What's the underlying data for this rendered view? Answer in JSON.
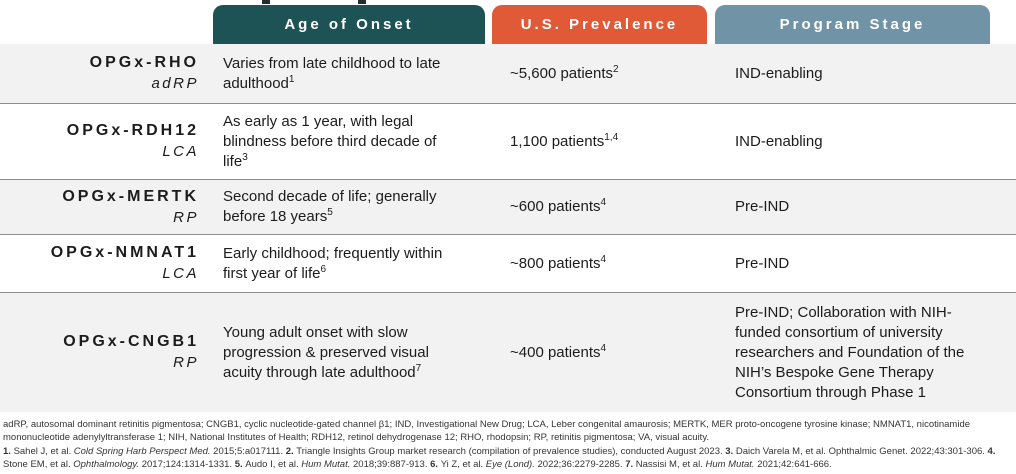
{
  "header": {
    "columns": [
      {
        "label": "Age of Onset",
        "color": "#1d5355"
      },
      {
        "label": "U.S. Prevalence",
        "color": "#e05a38"
      },
      {
        "label": "Program Stage",
        "color": "#7094a6"
      }
    ]
  },
  "table": {
    "rows": [
      {
        "program": "OPGx-RHO",
        "indication": "adRP",
        "onset": "Varies from late childhood to late adulthood",
        "onset_sup": "1",
        "prevalence": "~5,600 patients",
        "prevalence_sup": "2",
        "stage": "IND-enabling"
      },
      {
        "program": "OPGx-RDH12",
        "indication": "LCA",
        "onset": "As early as 1 year, with legal blindness before third decade of life",
        "onset_sup": "3",
        "prevalence": "1,100 patients",
        "prevalence_sup": "1,4",
        "stage": "IND-enabling"
      },
      {
        "program": "OPGx-MERTK",
        "indication": "RP",
        "onset": "Second decade of life; generally before 18 years",
        "onset_sup": "5",
        "prevalence": "~600 patients",
        "prevalence_sup": "4",
        "stage": "Pre-IND"
      },
      {
        "program": "OPGx-NMNAT1",
        "indication": "LCA",
        "onset": "Early childhood; frequently within first year of life",
        "onset_sup": "6",
        "prevalence": "~800 patients",
        "prevalence_sup": "4",
        "stage": "Pre-IND"
      },
      {
        "program": "OPGx-CNGB1",
        "indication": "RP",
        "onset": "Young adult onset with slow progression & preserved visual acuity through late adulthood",
        "onset_sup": "7",
        "prevalence": "~400 patients",
        "prevalence_sup": "4",
        "stage": "Pre-IND; Collaboration with NIH-funded consortium of university researchers and Foundation of the NIH’s Bespoke Gene Therapy Consortium through Phase 1"
      }
    ]
  },
  "footer": {
    "abbreviations": "adRP, autosomal dominant retinitis pigmentosa; CNGB1, cyclic nucleotide-gated channel β1; IND, Investigational New Drug; LCA, Leber congenital amaurosis; MERTK, MER proto-oncogene tyrosine kinase; NMNAT1, nicotinamide mononucleotide adenylyltransferase 1; NIH, National Institutes of Health; RDH12, retinol dehydrogenase 12; RHO, rhodopsin; RP, retinitis pigmentosa; VA, visual acuity.",
    "references": [
      {
        "t": "1. ",
        "b": true
      },
      {
        "t": "Sahel J, et al. "
      },
      {
        "t": "Cold Spring Harb Perspect Med.",
        "i": true
      },
      {
        "t": " 2015;5:a017111. "
      },
      {
        "t": "2. ",
        "b": true
      },
      {
        "t": "Triangle Insights Group market research (compilation of prevalence studies), conducted August 2023. "
      },
      {
        "t": "3. ",
        "b": true
      },
      {
        "t": "Daich Varela M, et al. Ophthalmic Genet. 2022;43:301-306. "
      },
      {
        "t": "4. ",
        "b": true
      },
      {
        "t": "Stone EM, et al. "
      },
      {
        "t": "Ophthalmology.",
        "i": true
      },
      {
        "t": " 2017;124:1314-1331. "
      },
      {
        "t": "5. ",
        "b": true
      },
      {
        "t": "Audo I, et al. "
      },
      {
        "t": "Hum Mutat.",
        "i": true
      },
      {
        "t": " 2018;39:887-913. "
      },
      {
        "t": "6. ",
        "b": true
      },
      {
        "t": "Yi Z, et al. "
      },
      {
        "t": "Eye (Lond).",
        "i": true
      },
      {
        "t": " 2022;36:2279-2285. "
      },
      {
        "t": "7. ",
        "b": true
      },
      {
        "t": "Nassisi M, et al. "
      },
      {
        "t": "Hum Mutat.",
        "i": true
      },
      {
        "t": " 2021;42:641-666."
      }
    ]
  }
}
